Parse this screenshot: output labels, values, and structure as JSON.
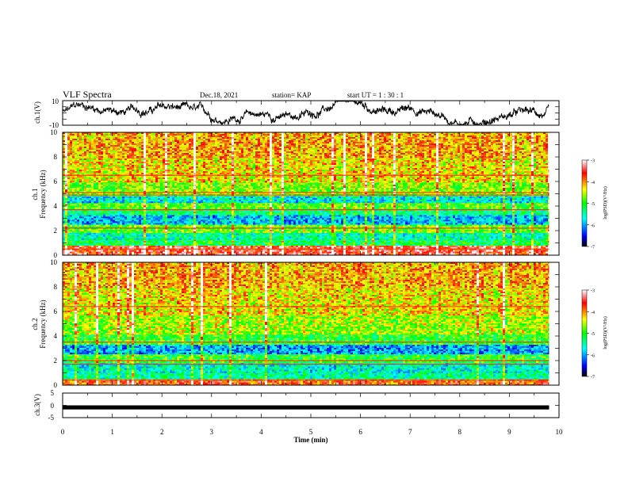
{
  "header": {
    "title": "VLF Spectra",
    "date": "Dec.18, 2021",
    "station": "station= KAP",
    "start": "start  UT =   1 : 30 : 1"
  },
  "chart_data": [
    {
      "type": "line",
      "panel": "ch1-waveform",
      "ylabel": "ch.1(V)",
      "ylim": [
        -10,
        10
      ],
      "yticks": [
        "10",
        "-10"
      ],
      "xlim": [
        0,
        10
      ],
      "line_color": "#000000",
      "description_of_signal": "noisy broadband waveform trace spanning approximately -9 to +9 V over 0-9.8 min"
    },
    {
      "type": "heatmap",
      "panel": "ch1-spectrogram",
      "ylabel_line1": "ch.1",
      "ylabel_line2": "Frequency (kHz)",
      "ylim": [
        0,
        10
      ],
      "yticks": [
        "0",
        "2",
        "4",
        "6",
        "8",
        "10"
      ],
      "xlim": [
        0,
        10
      ],
      "data_extent_x": [
        0,
        9.8
      ],
      "colorbar": {
        "label": "log(PSD)(V²/Hz)",
        "ticks": [
          "-3",
          "-4",
          "-5",
          "-6",
          "-7"
        ],
        "range": [
          -7,
          -3
        ],
        "colors": [
          "#000000",
          "#0000ff",
          "#00ffff",
          "#00ff00",
          "#ffff00",
          "#ff0000",
          "#ffffff"
        ]
      },
      "bands_kHz": [
        {
          "from": 0,
          "to": 0.8,
          "level": -3.5
        },
        {
          "from": 0.8,
          "to": 1.3,
          "level": -5.2
        },
        {
          "from": 1.3,
          "to": 1.9,
          "level": -5.5
        },
        {
          "from": 1.9,
          "to": 2.6,
          "level": -4.8
        },
        {
          "from": 2.6,
          "to": 3.4,
          "level": -5.9
        },
        {
          "from": 3.4,
          "to": 3.8,
          "level": -5.3
        },
        {
          "from": 3.8,
          "to": 4.3,
          "level": -4.8
        },
        {
          "from": 4.3,
          "to": 4.9,
          "level": -5.7
        },
        {
          "from": 4.9,
          "to": 6.0,
          "level": -4.7
        },
        {
          "from": 6.0,
          "to": 8.0,
          "level": -4.3
        },
        {
          "from": 8.0,
          "to": 10.0,
          "level": -4.1
        }
      ],
      "tone_lines_kHz": [
        6.5,
        5.1,
        4.9,
        3.7,
        2.2,
        0.5
      ]
    },
    {
      "type": "heatmap",
      "panel": "ch2-spectrogram",
      "ylabel_line1": "ch.2",
      "ylabel_line2": "Frequency (kHz)",
      "ylim": [
        0,
        10
      ],
      "yticks": [
        "0",
        "2",
        "4",
        "6",
        "8",
        "10"
      ],
      "xlim": [
        0,
        10
      ],
      "data_extent_x": [
        0,
        9.8
      ],
      "colorbar": {
        "label": "log(PSD)(V²/Hz)",
        "ticks": [
          "-3",
          "-4",
          "-5",
          "-6",
          "-7"
        ],
        "range": [
          -7,
          -3
        ],
        "colors": [
          "#000000",
          "#0000ff",
          "#00ffff",
          "#00ff00",
          "#ffff00",
          "#ff0000",
          "#ffffff"
        ]
      },
      "bands_kHz": [
        {
          "from": 0,
          "to": 0.6,
          "level": -3.8
        },
        {
          "from": 0.6,
          "to": 1.0,
          "level": -5.4
        },
        {
          "from": 1.0,
          "to": 1.9,
          "level": -5.6
        },
        {
          "from": 1.9,
          "to": 2.6,
          "level": -5.0
        },
        {
          "from": 2.6,
          "to": 3.3,
          "level": -6.0
        },
        {
          "from": 3.3,
          "to": 4.2,
          "level": -5.0
        },
        {
          "from": 4.2,
          "to": 5.8,
          "level": -4.6
        },
        {
          "from": 5.8,
          "to": 8.0,
          "level": -4.3
        },
        {
          "from": 8.0,
          "to": 10.0,
          "level": -4.1
        }
      ],
      "tone_lines_kHz": [
        6.4,
        3.5,
        2.0,
        1.7,
        0.4
      ]
    },
    {
      "type": "line",
      "panel": "ch3-waveform",
      "ylabel": "ch.3(V)",
      "ylim": [
        -5,
        5
      ],
      "yticks": [
        "5",
        "0",
        "-5"
      ],
      "xlim": [
        0,
        10
      ],
      "value_min": -0.7,
      "value_max": 0.0,
      "line_color": "#000000"
    }
  ],
  "xaxis": {
    "label": "Time (min)",
    "ticks": [
      "0",
      "1",
      "2",
      "3",
      "4",
      "5",
      "6",
      "7",
      "8",
      "9",
      "10"
    ]
  }
}
